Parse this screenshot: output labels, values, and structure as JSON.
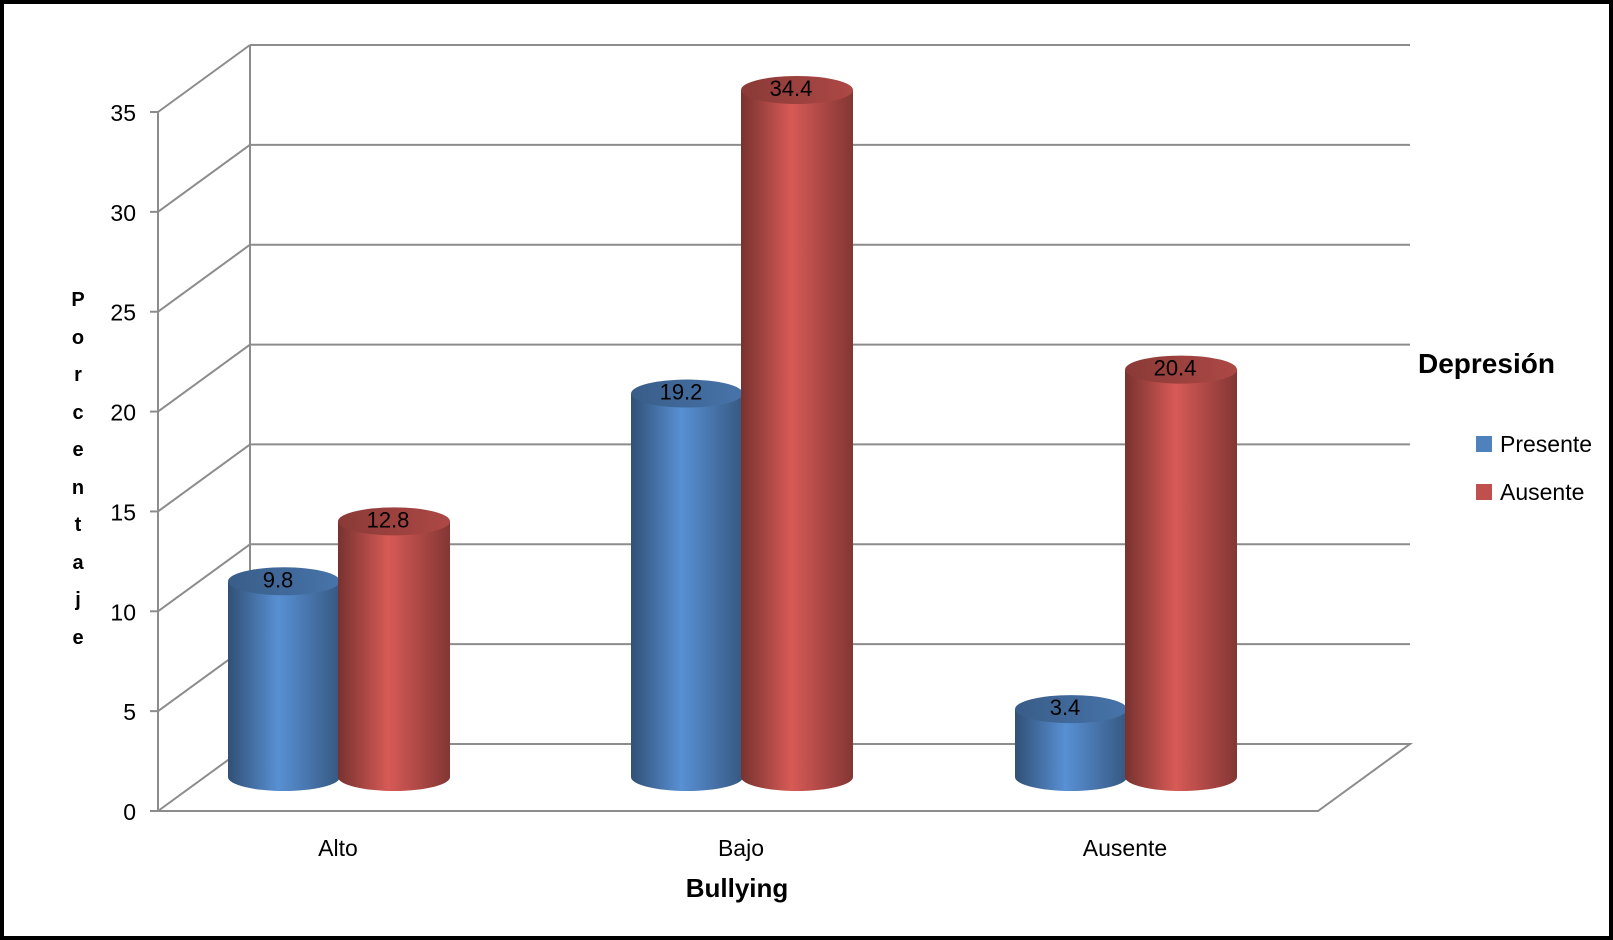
{
  "chart_data": {
    "type": "bar",
    "style": "3d-cylinder",
    "categories": [
      "Alto",
      "Bajo",
      "Ausente"
    ],
    "series": [
      {
        "name": "Presente",
        "values": [
          9.8,
          19.2,
          3.4
        ],
        "color": "#4F81BD"
      },
      {
        "name": "Ausente",
        "values": [
          12.8,
          34.4,
          20.4
        ],
        "color": "#C0504D"
      }
    ],
    "data_labels": [
      [
        "9.8",
        "19.2",
        "3.4"
      ],
      [
        "12.8",
        "34.4",
        "20.4"
      ]
    ],
    "title": "",
    "xlabel": "Bullying",
    "ylabel": "Porcentaje",
    "ylim": [
      0,
      35
    ],
    "yticks": [
      "0",
      "5",
      "10",
      "15",
      "20",
      "25",
      "30",
      "35"
    ],
    "grid": true,
    "legend": {
      "title": "Depresión",
      "placement": "right"
    }
  }
}
